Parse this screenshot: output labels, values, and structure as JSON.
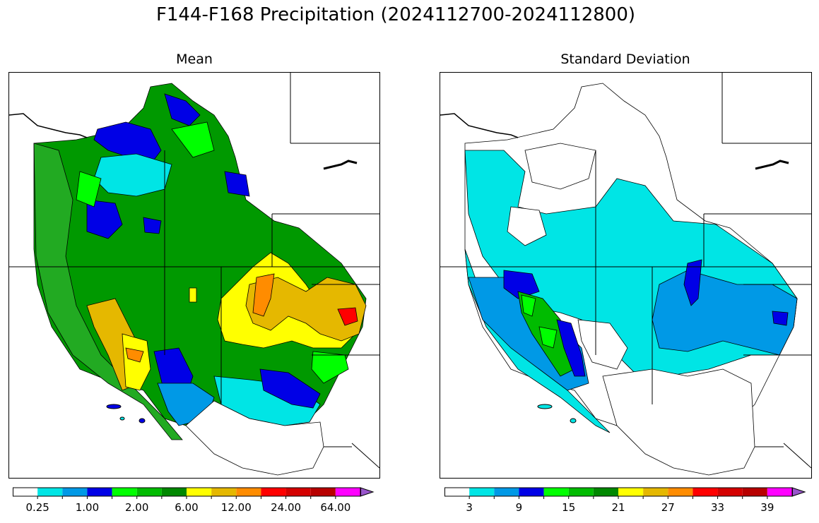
{
  "title": "F144-F168 Precipitation (2024112700-2024112800)",
  "panels": {
    "mean": {
      "title": "Mean"
    },
    "sd": {
      "title": "Standard Deviation"
    }
  },
  "colorbar": {
    "colors": [
      "#ffffff",
      "#00e5e5",
      "#0099e6",
      "#0000e6",
      "#00ff00",
      "#00bb00",
      "#008800",
      "#ffff00",
      "#e5b800",
      "#ff8c00",
      "#ff0000",
      "#d40000",
      "#b80000",
      "#ff00ff",
      "#9955cc"
    ],
    "mean_ticks": [
      "0.25",
      "1.00",
      "2.00",
      "6.00",
      "12.00",
      "24.00",
      "64.00"
    ],
    "sd_ticks": [
      "3",
      "9",
      "15",
      "21",
      "27",
      "33",
      "39"
    ]
  },
  "chart_data": [
    {
      "type": "map",
      "title": "Mean",
      "variable": "Precipitation mean (F144-F168)",
      "legend_levels": [
        "0.25",
        "1.00",
        "2.00",
        "6.00",
        "12.00",
        "24.00",
        "64.00"
      ],
      "dominant_classes": [
        "green",
        "dark green",
        "blue",
        "cyan",
        "yellow",
        "gold",
        "orange",
        "red"
      ]
    },
    {
      "type": "map",
      "title": "Standard Deviation",
      "variable": "Precipitation standard deviation (F144-F168)",
      "legend_levels": [
        "3",
        "9",
        "15",
        "21",
        "27",
        "33",
        "39"
      ],
      "dominant_classes": [
        "white",
        "cyan",
        "light blue",
        "blue",
        "green"
      ]
    }
  ]
}
